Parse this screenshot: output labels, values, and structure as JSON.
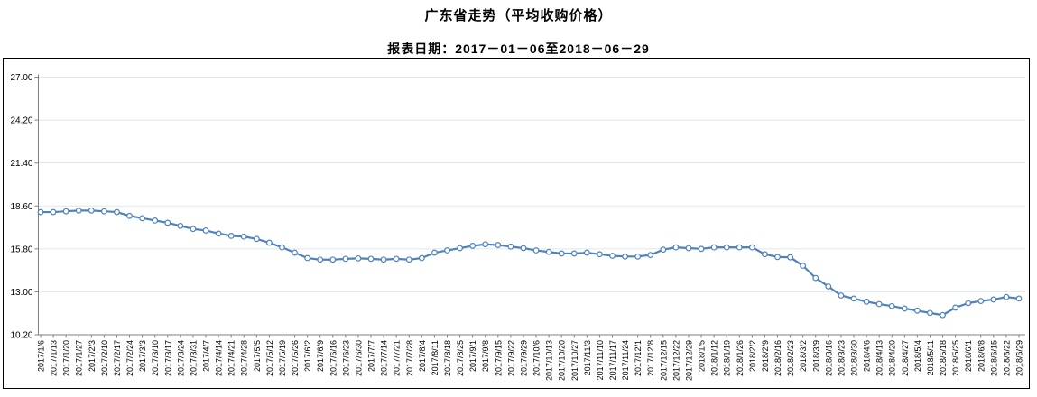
{
  "title": "广东省走势（平均收购价格）",
  "subtitle": "报表日期：2017－01－06至2018－06－29",
  "chart_data": {
    "type": "line",
    "title": "广东省走势（平均收购价格）",
    "subtitle": "报表日期：2017－01－06至2018－06－29",
    "xlabel": "",
    "ylabel": "",
    "ylim": [
      10.2,
      27.0
    ],
    "ytick_interval": 2.8,
    "yticks": [
      "27.00",
      "24.20",
      "21.40",
      "18.60",
      "15.80",
      "13.00",
      "10.20"
    ],
    "grid": true,
    "legend_position": "none",
    "colors": {
      "series": "#4f81bd",
      "marker_fill": "#ffffff",
      "gridline": "#dbe5f1",
      "axis": "#808080",
      "tick": "#808080",
      "box_border": "#000000"
    },
    "x": [
      "2017/1/6",
      "2017/1/13",
      "2017/1/20",
      "2017/1/27",
      "2017/2/3",
      "2017/2/10",
      "2017/2/17",
      "2017/2/24",
      "2017/3/3",
      "2017/3/10",
      "2017/3/17",
      "2017/3/24",
      "2017/3/31",
      "2017/4/7",
      "2017/4/14",
      "2017/4/21",
      "2017/4/28",
      "2017/5/5",
      "2017/5/12",
      "2017/5/19",
      "2017/5/26",
      "2017/6/2",
      "2017/6/9",
      "2017/6/16",
      "2017/6/23",
      "2017/6/30",
      "2017/7/7",
      "2017/7/14",
      "2017/7/21",
      "2017/7/28",
      "2017/8/4",
      "2017/8/11",
      "2017/8/18",
      "2017/8/25",
      "2017/9/1",
      "2017/9/8",
      "2017/9/15",
      "2017/9/22",
      "2017/9/29",
      "2017/10/6",
      "2017/10/13",
      "2017/10/20",
      "2017/10/27",
      "2017/11/3",
      "2017/11/10",
      "2017/11/17",
      "2017/11/24",
      "2017/12/1",
      "2017/12/8",
      "2017/12/15",
      "2017/12/22",
      "2017/12/29",
      "2018/1/5",
      "2018/1/12",
      "2018/1/19",
      "2018/1/26",
      "2018/2/2",
      "2018/2/9",
      "2018/2/16",
      "2018/2/23",
      "2018/3/2",
      "2018/3/9",
      "2018/3/16",
      "2018/3/23",
      "2018/3/30",
      "2018/4/6",
      "2018/4/13",
      "2018/4/20",
      "2018/4/27",
      "2018/5/4",
      "2018/5/11",
      "2018/5/18",
      "2018/5/25",
      "2018/6/1",
      "2018/6/8",
      "2018/6/15",
      "2018/6/22",
      "2018/6/29"
    ],
    "series": [
      {
        "name": "平均收购价格",
        "values": [
          18.2,
          18.2,
          18.25,
          18.3,
          18.3,
          18.25,
          18.2,
          17.95,
          17.8,
          17.65,
          17.5,
          17.3,
          17.1,
          17.0,
          16.8,
          16.65,
          16.6,
          16.45,
          16.2,
          15.9,
          15.55,
          15.2,
          15.1,
          15.1,
          15.15,
          15.18,
          15.15,
          15.1,
          15.15,
          15.1,
          15.2,
          15.55,
          15.7,
          15.85,
          16.0,
          16.1,
          16.05,
          15.95,
          15.85,
          15.7,
          15.6,
          15.5,
          15.5,
          15.55,
          15.45,
          15.35,
          15.3,
          15.3,
          15.4,
          15.75,
          15.9,
          15.85,
          15.8,
          15.9,
          15.9,
          15.9,
          15.9,
          15.45,
          15.27,
          15.25,
          14.7,
          13.9,
          13.35,
          12.76,
          12.56,
          12.36,
          12.2,
          12.07,
          11.91,
          11.77,
          11.62,
          11.48,
          11.97,
          12.26,
          12.4,
          12.5,
          12.66,
          12.56
        ]
      }
    ]
  }
}
